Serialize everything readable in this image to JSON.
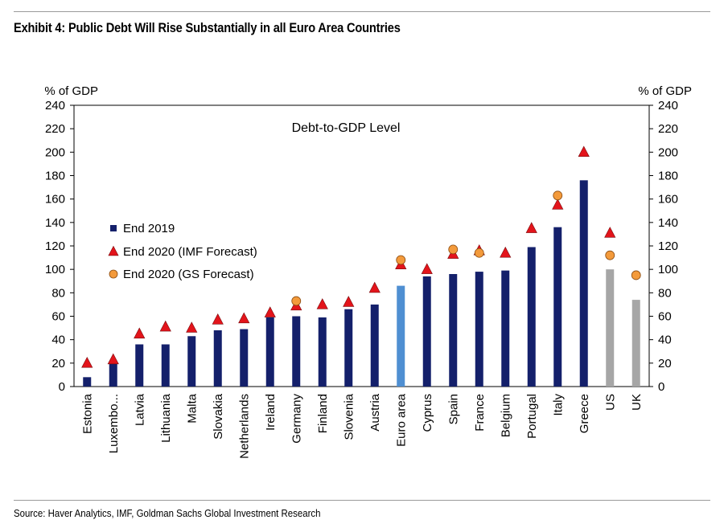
{
  "header": {
    "title": "Exhibit 4: Public Debt Will Rise Substantially in all Euro Area Countries"
  },
  "footer": {
    "source": "Source: Haver Analytics, IMF, Goldman Sachs Global Investment Research"
  },
  "colors": {
    "navy": "#14206b",
    "euro": "#4f8fd2",
    "gray": "#a6a6a6",
    "triangle": "#e3141b",
    "circle": "#f39a3b"
  },
  "chart_data": {
    "type": "bar",
    "title": "Debt-to-GDP Level",
    "ylabel_left": "% of GDP",
    "ylabel_right": "% of GDP",
    "ylim": [
      0,
      240
    ],
    "yticks": [
      0,
      20,
      40,
      60,
      80,
      100,
      120,
      140,
      160,
      180,
      200,
      220,
      240
    ],
    "categories": [
      "Estonia",
      "Luxembo...",
      "Latvia",
      "Lithuania",
      "Malta",
      "Slovakia",
      "Netherlands",
      "Ireland",
      "Germany",
      "Finland",
      "Slovenia",
      "Austria",
      "Euro area",
      "Cyprus",
      "Spain",
      "France",
      "Belgium",
      "Portugal",
      "Italy",
      "Greece",
      "US",
      "UK"
    ],
    "bar_color_group": [
      "navy",
      "navy",
      "navy",
      "navy",
      "navy",
      "navy",
      "navy",
      "navy",
      "navy",
      "navy",
      "navy",
      "navy",
      "euro",
      "navy",
      "navy",
      "navy",
      "navy",
      "navy",
      "navy",
      "navy",
      "gray",
      "gray"
    ],
    "legend": [
      {
        "label": "End 2019",
        "marker": "square"
      },
      {
        "label": "End 2020 (IMF Forecast)",
        "marker": "triangle"
      },
      {
        "label": "End 2020 (GS Forecast)",
        "marker": "circle"
      }
    ],
    "series": [
      {
        "name": "End 2019",
        "values": [
          8,
          20,
          36,
          36,
          43,
          48,
          49,
          59,
          60,
          59,
          66,
          70,
          86,
          94,
          96,
          98,
          99,
          119,
          136,
          176,
          100,
          74
        ]
      },
      {
        "name": "End 2020 (IMF Forecast)",
        "values": [
          20,
          23,
          45,
          51,
          50,
          57,
          58,
          63,
          69,
          70,
          72,
          84,
          104,
          100,
          113,
          116,
          114,
          135,
          155,
          200,
          131,
          null
        ]
      },
      {
        "name": "End 2020 (GS Forecast)",
        "values": [
          null,
          null,
          null,
          null,
          null,
          null,
          null,
          null,
          73,
          null,
          null,
          null,
          108,
          null,
          117,
          114,
          null,
          null,
          163,
          null,
          112,
          95
        ]
      }
    ]
  }
}
